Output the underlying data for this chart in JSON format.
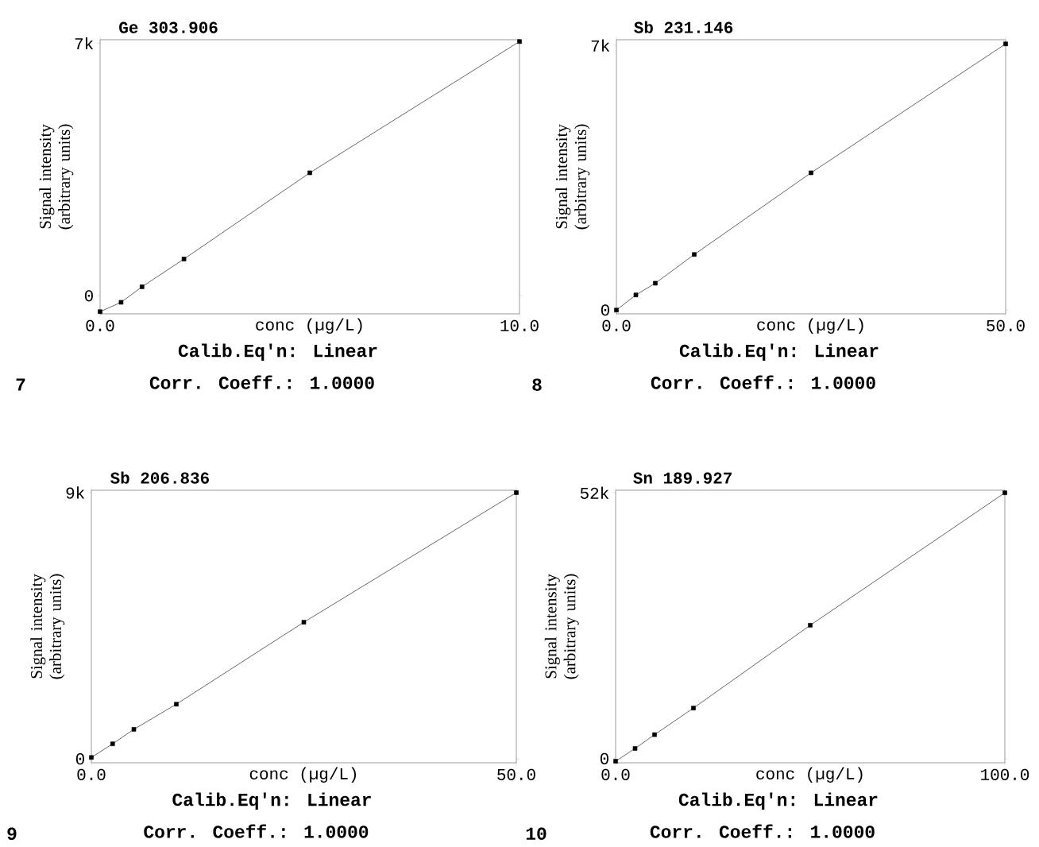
{
  "chart_data": [
    {
      "type": "line",
      "title": "Ge 303.906",
      "xlabel": "conc (µg/L)",
      "ylabel": "Signal intensity (arbitrary units)",
      "annotations": [
        "Calib.Eq'n: Linear",
        "Corr. Coeff.: 1.0000",
        "7"
      ],
      "color": "#000000",
      "marker": "square",
      "x": [
        0,
        0.5,
        1,
        2,
        5,
        10
      ],
      "values": [
        -440,
        -180,
        250,
        1020,
        3410,
        7050
      ],
      "xlim": [
        0,
        10
      ],
      "ylim": [
        -500,
        7100
      ],
      "xticks": [
        {
          "value": 0,
          "label": "0.0"
        },
        {
          "value": 10,
          "label": "10.0"
        }
      ],
      "yticks": [
        0,
        {
          "value": 7000,
          "label": "7k"
        }
      ]
    },
    {
      "type": "line",
      "title": "Sb 231.146",
      "xlabel": "conc (µg/L)",
      "ylabel": "Signal intensity (arbitrary units)",
      "annotations": [
        "Calib.Eq'n: Linear",
        "Corr. Coeff.: 1.0000",
        "8"
      ],
      "color": "#000000",
      "marker": "square",
      "x": [
        0,
        2.5,
        5,
        10,
        25,
        50
      ],
      "values": [
        0,
        400,
        710,
        1470,
        3630,
        7040
      ],
      "xlim": [
        0,
        50
      ],
      "ylim": [
        -100,
        7150
      ],
      "xticks": [
        {
          "value": 0,
          "label": "0.0"
        },
        {
          "value": 50,
          "label": "50.0"
        }
      ],
      "yticks": [
        0,
        {
          "value": 7000,
          "label": "7k"
        }
      ]
    },
    {
      "type": "line",
      "title": "Sb 206.836",
      "xlabel": "conc (µg/L)",
      "ylabel": "Signal intensity (arbitrary units)",
      "annotations": [
        "Calib.Eq'n: Linear",
        "Corr. Coeff.: 1.0000",
        "9"
      ],
      "color": "#000000",
      "marker": "square",
      "x": [
        0,
        2.5,
        5,
        10,
        25,
        50
      ],
      "values": [
        50,
        510,
        1000,
        1850,
        4620,
        9000
      ],
      "xlim": [
        0,
        50
      ],
      "ylim": [
        -130,
        9080
      ],
      "xticks": [
        {
          "value": 0,
          "label": "0.0"
        },
        {
          "value": 50,
          "label": "50.0"
        }
      ],
      "yticks": [
        0,
        {
          "value": 9000,
          "label": "9k"
        }
      ]
    },
    {
      "type": "line",
      "title": "Sn 189.927",
      "xlabel": "conc (µg/L)",
      "ylabel": "Signal intensity (arbitrary units)",
      "annotations": [
        "Calib.Eq'n: Linear",
        "Corr. Coeff.: 1.0000",
        "10"
      ],
      "color": "#000000",
      "marker": "square",
      "x": [
        0,
        5,
        10,
        20,
        50,
        100
      ],
      "values": [
        -500,
        2000,
        4700,
        9900,
        26100,
        52000
      ],
      "xlim": [
        0,
        100
      ],
      "ylim": [
        -800,
        52500
      ],
      "xticks": [
        {
          "value": 0,
          "label": "0.0"
        },
        {
          "value": 100,
          "label": "100.0"
        }
      ],
      "yticks": [
        0,
        {
          "value": 52000,
          "label": "52k"
        }
      ]
    }
  ]
}
